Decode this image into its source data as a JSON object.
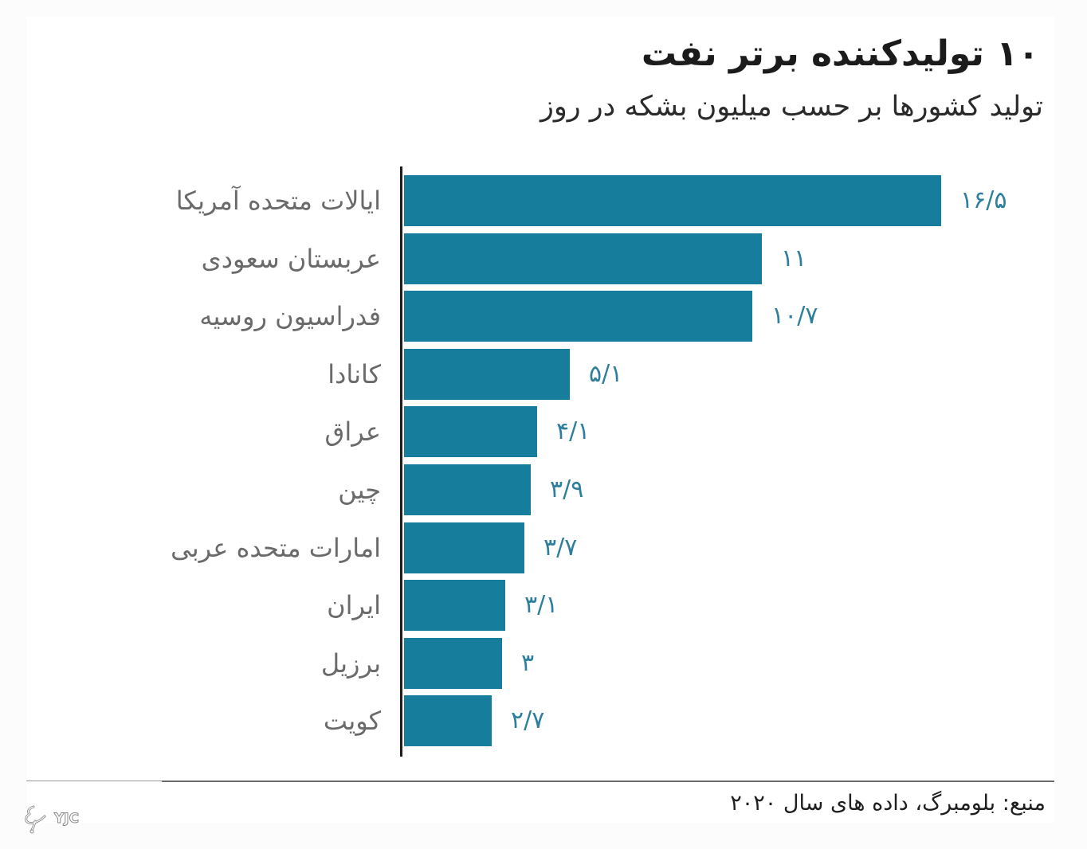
{
  "header": {
    "title": "۱۰ تولیدکننده برتر نفت",
    "subtitle": "تولید کشورها بر حسب میلیون بشکه در روز"
  },
  "rows": [
    {
      "label": "ایالات متحده آمریکا",
      "value_label": "۱۶/۵"
    },
    {
      "label": "عربستان سعودی",
      "value_label": "۱۱"
    },
    {
      "label": "فدراسیون روسیه",
      "value_label": "۱۰/۷"
    },
    {
      "label": "کانادا",
      "value_label": "۵/۱"
    },
    {
      "label": "عراق",
      "value_label": "۴/۱"
    },
    {
      "label": "چین",
      "value_label": "۳/۹"
    },
    {
      "label": "امارات متحده عربی",
      "value_label": "۳/۷"
    },
    {
      "label": "ایران",
      "value_label": "۳/۱"
    },
    {
      "label": "برزیل",
      "value_label": "۳"
    },
    {
      "label": "کویت",
      "value_label": "۲/۷"
    }
  ],
  "footer": {
    "source": "منبع: بلومبرگ، داده های سال ۲۰۲۰",
    "watermark": "YJC"
  },
  "colors": {
    "bar": "#177d9c",
    "value_label": "#2d7f9d",
    "category_label": "#6a6a6a",
    "axis": "#1e1e1e"
  },
  "chart_data": {
    "type": "bar",
    "orientation": "horizontal",
    "title": "۱۰ تولیدکننده برتر نفت",
    "subtitle": "تولید کشورها بر حسب میلیون بشکه در روز",
    "xlabel": "",
    "ylabel": "",
    "unit": "million barrels per day",
    "categories": [
      "ایالات متحده آمریکا",
      "عربستان سعودی",
      "فدراسیون روسیه",
      "کانادا",
      "عراق",
      "چین",
      "امارات متحده عربی",
      "ایران",
      "برزیل",
      "کویت"
    ],
    "values": [
      16.5,
      11,
      10.7,
      5.1,
      4.1,
      3.9,
      3.7,
      3.1,
      3,
      2.7
    ],
    "data_labels": [
      "۱۶/۵",
      "۱۱",
      "۱۰/۷",
      "۵/۱",
      "۴/۱",
      "۳/۹",
      "۳/۷",
      "۳/۱",
      "۳",
      "۲/۷"
    ],
    "xlim": [
      0,
      16.5
    ],
    "grid": false,
    "legend": null,
    "source": "منبع: بلومبرگ، داده های سال ۲۰۲۰"
  }
}
